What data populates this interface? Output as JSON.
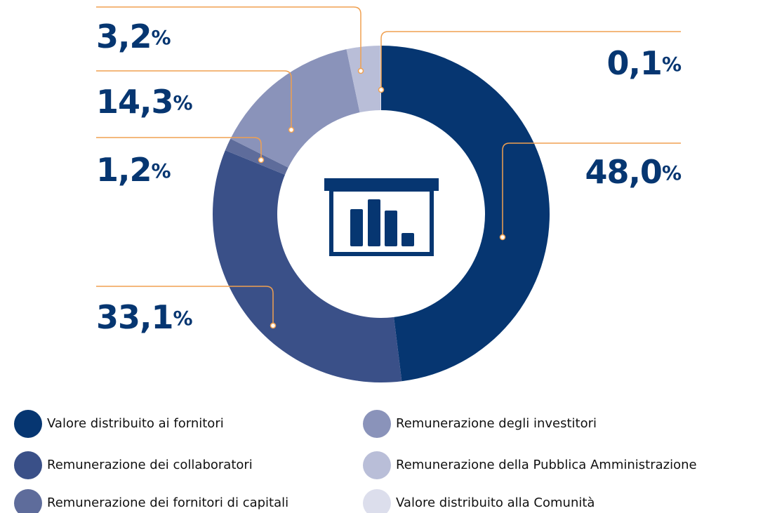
{
  "chart_data": {
    "type": "donut",
    "categories": [
      "Valore distribuito ai fornitori",
      "Remunerazione dei collaboratori",
      "Remunerazione dei fornitori di capitali",
      "Remunerazione degli investitori",
      "Remunerazione della Pubblica Amministrazione",
      "Valore distribuito alla Comunità"
    ],
    "values": [
      48.0,
      33.1,
      1.2,
      14.3,
      3.2,
      0.1
    ],
    "value_labels": [
      "48,0%",
      "33,1%",
      "1,2%",
      "14,3%",
      "3,2%",
      "0,1%"
    ],
    "colors": [
      "#063671",
      "#3a5088",
      "#5e6c9b",
      "#8a93ba",
      "#b9bed8",
      "#dcdeec"
    ],
    "legend": "bottom"
  }
}
